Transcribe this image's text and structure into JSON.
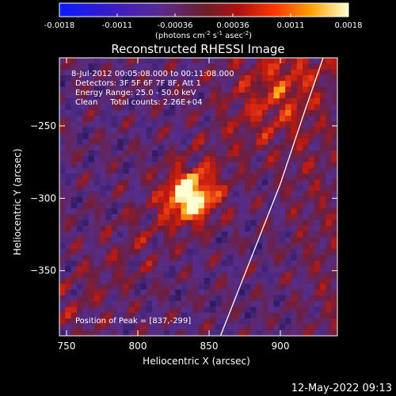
{
  "colorbar": {
    "tick_labels": [
      "-0.0018",
      "-0.0011",
      "-0.00036",
      "0.00036",
      "0.0011",
      "0.0018"
    ],
    "unit_label_parts": [
      "(photons cm",
      "-2",
      " s",
      "-1",
      " asec",
      "-2",
      ")"
    ]
  },
  "chart_data": {
    "type": "heatmap",
    "title": "Reconstructed RHESSI Image",
    "xlabel": "Heliocentric X (arcsec)",
    "ylabel": "Heliocentric Y (arcsec)",
    "xlim": [
      745,
      940
    ],
    "ylim": [
      -395,
      -203
    ],
    "x_ticks": [
      750,
      800,
      850,
      900
    ],
    "y_ticks": [
      -250,
      -300,
      -350
    ],
    "colorbar_range": [
      -0.0018,
      0.0018
    ],
    "info_lines": [
      "8-Jul-2012 00:05:08.000 to 00:11:08.000",
      "Detectors: 3F 5F 6F 7F 8F, Att 1",
      "Energy Range: 25.0 - 50.0 keV",
      "Clean     Total counts: 2.26E+04"
    ],
    "peak_label": "Position of Peak = [837,-299]",
    "peak": [
      837,
      -299
    ],
    "limb_points": [
      [
        858,
        -395
      ],
      [
        880,
        -340
      ],
      [
        900,
        -290
      ],
      [
        917,
        -240
      ],
      [
        930,
        -203
      ]
    ]
  },
  "footer": {
    "timestamp": "12-May-2022 09:13"
  },
  "colors": {
    "background": "#000000",
    "text": "#ffffff"
  }
}
